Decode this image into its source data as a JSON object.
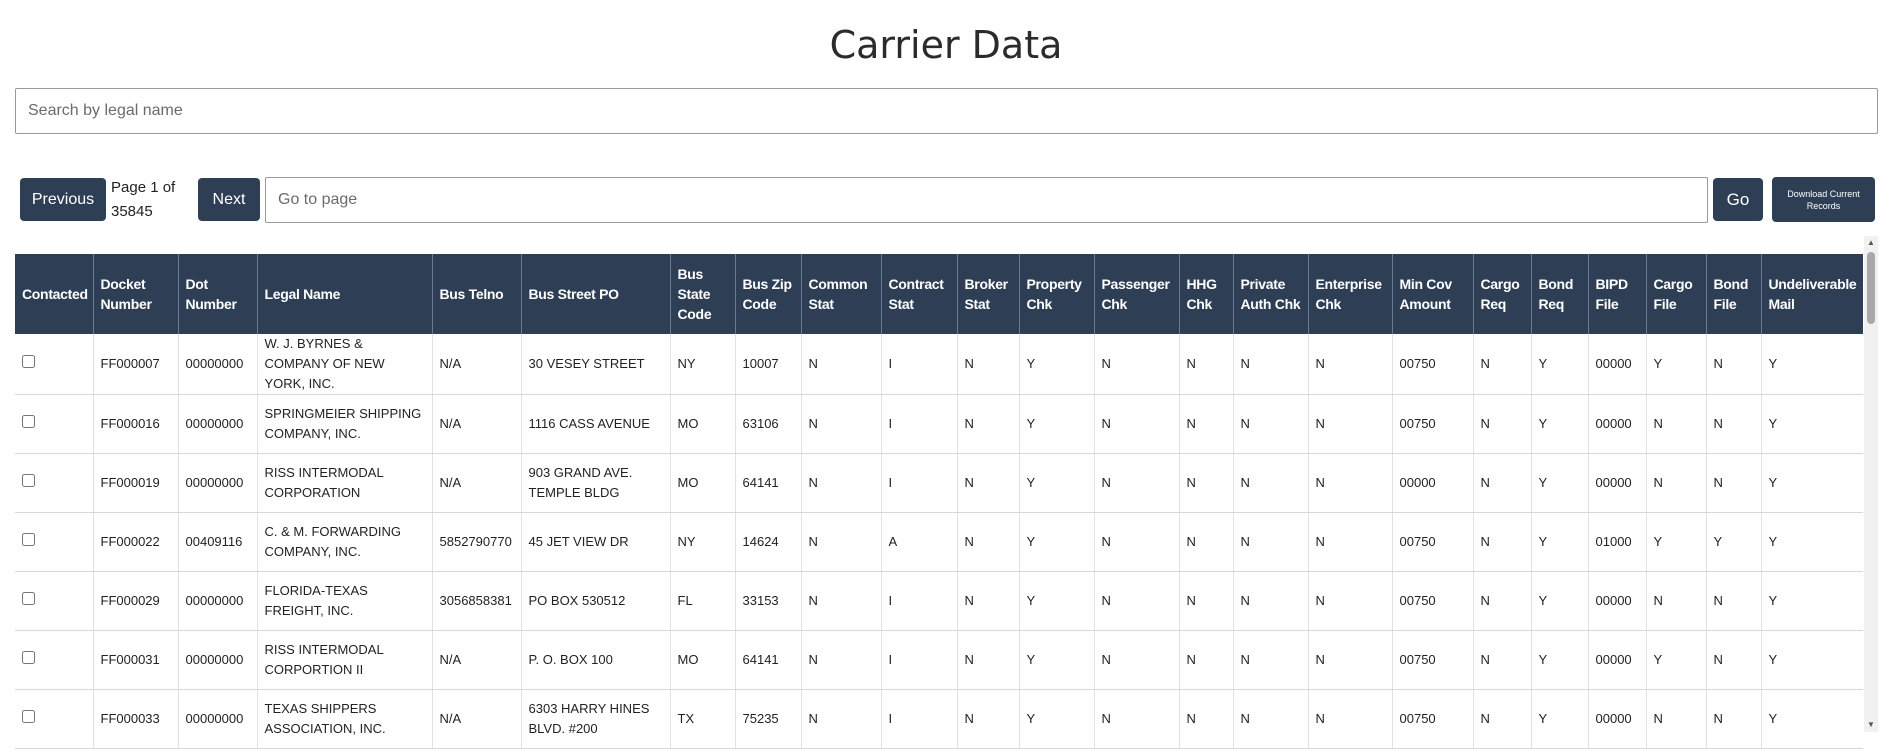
{
  "title": "Carrier Data",
  "search": {
    "placeholder": "Search by legal name"
  },
  "pagination": {
    "previous_label": "Previous",
    "page_info": "Page 1 of 35845",
    "next_label": "Next",
    "goto_placeholder": "Go to page",
    "go_label": "Go",
    "download_label": "Download Current Records"
  },
  "table": {
    "columns": [
      "Contacted",
      "Docket Number",
      "Dot Number",
      "Legal Name",
      "Bus Telno",
      "Bus Street PO",
      "Bus State Code",
      "Bus Zip Code",
      "Common Stat",
      "Contract Stat",
      "Broker Stat",
      "Property Chk",
      "Passenger Chk",
      "HHG Chk",
      "Private Auth Chk",
      "Enterprise Chk",
      "Min Cov Amount",
      "Cargo Req",
      "Bond Req",
      "BIPD File",
      "Cargo File",
      "Bond File",
      "Undeliverable Mail"
    ],
    "rows": [
      {
        "docket": "FF000007",
        "dot": "00000000",
        "legal_name": "W. J. BYRNES & COMPANY OF NEW YORK, INC.",
        "telno": "N/A",
        "street": "30 VESEY STREET",
        "state": "NY",
        "zip": "10007",
        "common": "N",
        "contract": "I",
        "broker": "N",
        "property": "Y",
        "passenger": "N",
        "hhg": "N",
        "private_auth": "N",
        "enterprise": "N",
        "min_cov": "00750",
        "cargo_req": "N",
        "bond_req": "Y",
        "bipd_file": "00000",
        "cargo_file": "Y",
        "bond_file": "N",
        "undeliverable": "Y"
      },
      {
        "docket": "FF000016",
        "dot": "00000000",
        "legal_name": "SPRINGMEIER SHIPPING COMPANY, INC.",
        "telno": "N/A",
        "street": "1116 CASS AVENUE",
        "state": "MO",
        "zip": "63106",
        "common": "N",
        "contract": "I",
        "broker": "N",
        "property": "Y",
        "passenger": "N",
        "hhg": "N",
        "private_auth": "N",
        "enterprise": "N",
        "min_cov": "00750",
        "cargo_req": "N",
        "bond_req": "Y",
        "bipd_file": "00000",
        "cargo_file": "N",
        "bond_file": "N",
        "undeliverable": "Y"
      },
      {
        "docket": "FF000019",
        "dot": "00000000",
        "legal_name": "RISS INTERMODAL CORPORATION",
        "telno": "N/A",
        "street": "903 GRAND AVE. TEMPLE BLDG",
        "state": "MO",
        "zip": "64141",
        "common": "N",
        "contract": "I",
        "broker": "N",
        "property": "Y",
        "passenger": "N",
        "hhg": "N",
        "private_auth": "N",
        "enterprise": "N",
        "min_cov": "00000",
        "cargo_req": "N",
        "bond_req": "Y",
        "bipd_file": "00000",
        "cargo_file": "N",
        "bond_file": "N",
        "undeliverable": "Y"
      },
      {
        "docket": "FF000022",
        "dot": "00409116",
        "legal_name": "C. & M. FORWARDING COMPANY, INC.",
        "telno": "5852790770",
        "street": "45 JET VIEW DR",
        "state": "NY",
        "zip": "14624",
        "common": "N",
        "contract": "A",
        "broker": "N",
        "property": "Y",
        "passenger": "N",
        "hhg": "N",
        "private_auth": "N",
        "enterprise": "N",
        "min_cov": "00750",
        "cargo_req": "N",
        "bond_req": "Y",
        "bipd_file": "01000",
        "cargo_file": "Y",
        "bond_file": "Y",
        "undeliverable": "Y"
      },
      {
        "docket": "FF000029",
        "dot": "00000000",
        "legal_name": "FLORIDA-TEXAS FREIGHT, INC.",
        "telno": "3056858381",
        "street": "PO BOX 530512",
        "state": "FL",
        "zip": "33153",
        "common": "N",
        "contract": "I",
        "broker": "N",
        "property": "Y",
        "passenger": "N",
        "hhg": "N",
        "private_auth": "N",
        "enterprise": "N",
        "min_cov": "00750",
        "cargo_req": "N",
        "bond_req": "Y",
        "bipd_file": "00000",
        "cargo_file": "N",
        "bond_file": "N",
        "undeliverable": "Y"
      },
      {
        "docket": "FF000031",
        "dot": "00000000",
        "legal_name": "RISS INTERMODAL CORPORTION II",
        "telno": "N/A",
        "street": "P. O. BOX 100",
        "state": "MO",
        "zip": "64141",
        "common": "N",
        "contract": "I",
        "broker": "N",
        "property": "Y",
        "passenger": "N",
        "hhg": "N",
        "private_auth": "N",
        "enterprise": "N",
        "min_cov": "00750",
        "cargo_req": "N",
        "bond_req": "Y",
        "bipd_file": "00000",
        "cargo_file": "Y",
        "bond_file": "N",
        "undeliverable": "Y"
      },
      {
        "docket": "FF000033",
        "dot": "00000000",
        "legal_name": "TEXAS SHIPPERS ASSOCIATION, INC.",
        "telno": "N/A",
        "street": "6303 HARRY HINES BLVD. #200",
        "state": "TX",
        "zip": "75235",
        "common": "N",
        "contract": "I",
        "broker": "N",
        "property": "Y",
        "passenger": "N",
        "hhg": "N",
        "private_auth": "N",
        "enterprise": "N",
        "min_cov": "00750",
        "cargo_req": "N",
        "bond_req": "Y",
        "bipd_file": "00000",
        "cargo_file": "N",
        "bond_file": "N",
        "undeliverable": "Y"
      }
    ]
  }
}
